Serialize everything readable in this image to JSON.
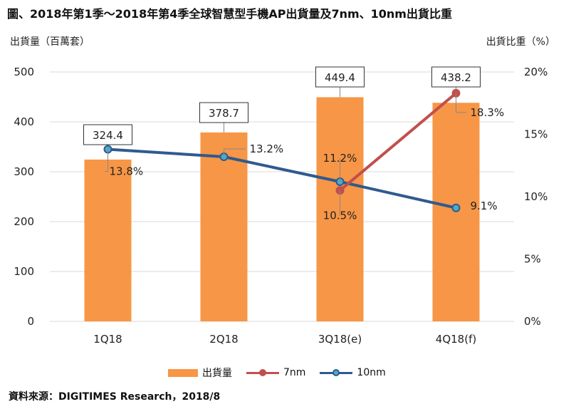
{
  "title": "圖、2018年第1季～2018年第4季全球智慧型手機AP出貨量及7nm、10nm出貨比重",
  "source": "資料來源：DIGITIMES Research，2018/8",
  "colors": {
    "bar": "#F79646",
    "line_7nm": "#C0504D",
    "line_10nm": "#2F5A8F",
    "dot_10nm": "#4BACC6"
  },
  "chart_data": {
    "type": "bar",
    "title": "圖、2018年第1季～2018年第4季全球智慧型手機AP出貨量及7nm、10nm出貨比重",
    "categories": [
      "1Q18",
      "2Q18",
      "3Q18(e)",
      "4Q18(f)"
    ],
    "ylabel": "出貨量（百萬套）",
    "y2label": "出貨比重（%）",
    "ylim": [
      0,
      500
    ],
    "y2lim": [
      0,
      20
    ],
    "yticks": [
      "0",
      "100",
      "200",
      "300",
      "400",
      "500"
    ],
    "y2ticks": [
      "0%",
      "5%",
      "10%",
      "15%",
      "20%"
    ],
    "grid": true,
    "legend_position": "bottom",
    "series": [
      {
        "name": "出貨量",
        "type": "bar",
        "axis": "left",
        "values": [
          324.4,
          378.7,
          449.4,
          438.2
        ],
        "labels": [
          "324.4",
          "378.7",
          "449.4",
          "438.2"
        ]
      },
      {
        "name": "7nm",
        "type": "line",
        "axis": "right",
        "values": [
          null,
          null,
          10.5,
          18.3
        ],
        "labels": [
          "",
          "",
          "10.5%",
          "18.3%"
        ]
      },
      {
        "name": "10nm",
        "type": "line",
        "axis": "right",
        "values": [
          13.8,
          13.2,
          11.2,
          9.1
        ],
        "labels": [
          "13.8%",
          "13.2%",
          "11.2%",
          "9.1%"
        ]
      }
    ]
  }
}
